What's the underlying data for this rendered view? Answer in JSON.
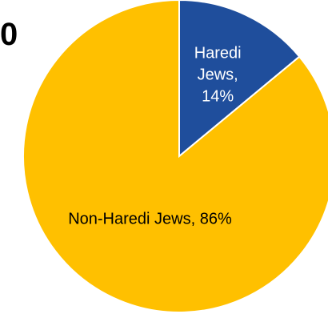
{
  "chart_data": {
    "type": "pie",
    "title": "0",
    "start_angle_deg": 0,
    "direction": "clockwise",
    "slices": [
      {
        "name": "Haredi Jews",
        "value": 14,
        "color": "#1F4E9C",
        "label_color": "#FFFFFF",
        "label_lines": [
          "Haredi",
          "Jews,",
          "14%"
        ]
      },
      {
        "name": "Non-Haredi Jews",
        "value": 86,
        "color": "#FFC000",
        "label_color": "#000000",
        "label_lines": [
          "Non-Haredi Jews, 86%"
        ]
      }
    ]
  }
}
